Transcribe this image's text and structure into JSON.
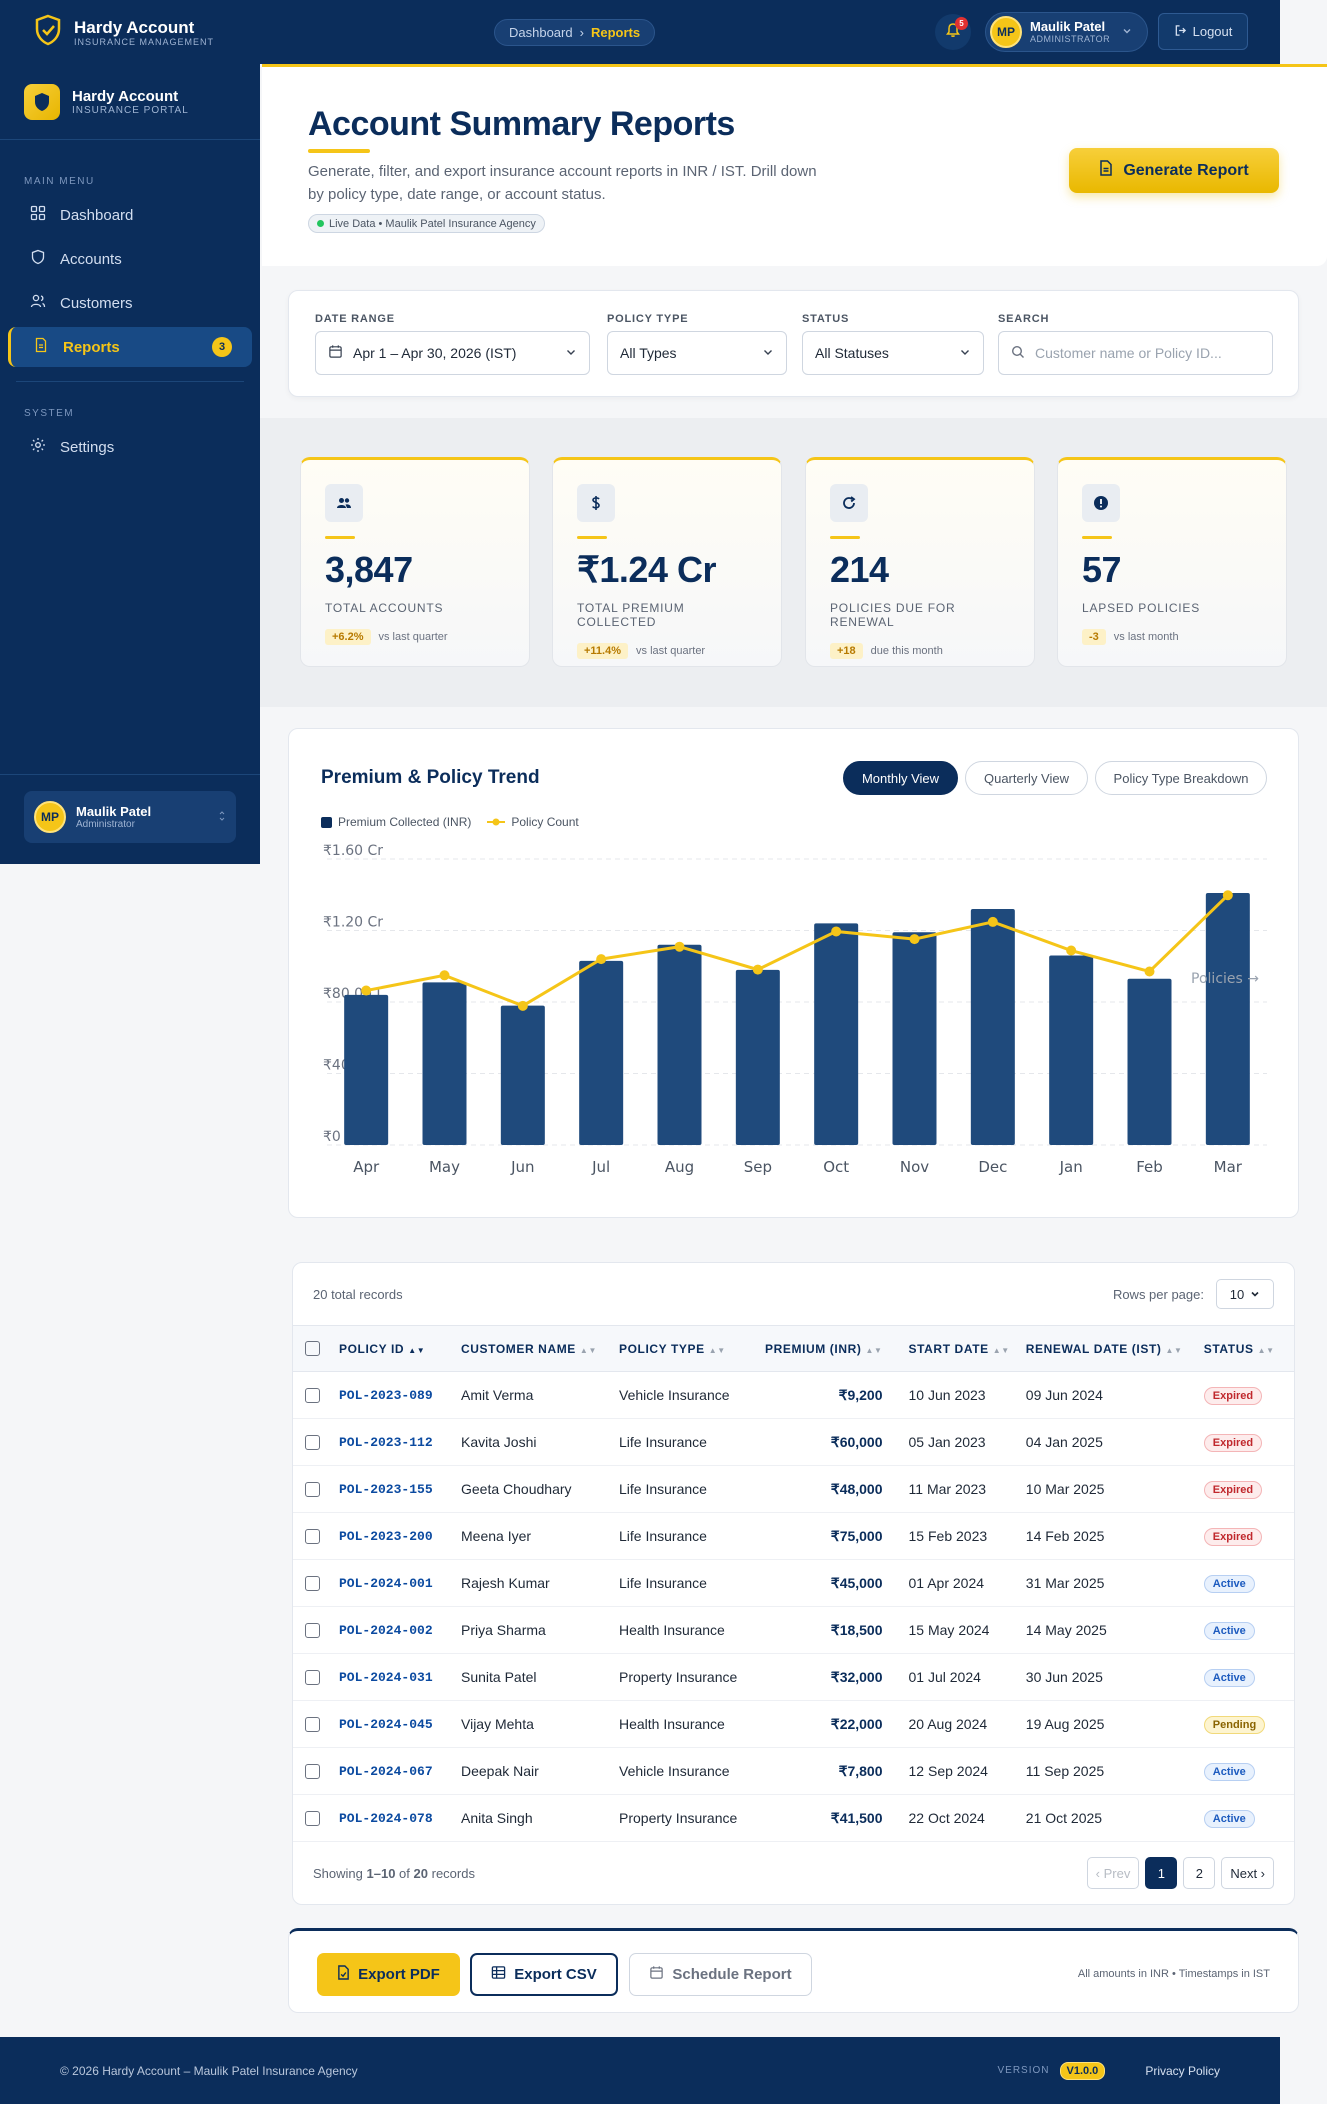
{
  "topbar": {
    "brand_name": "Hardy Account",
    "brand_sub": "INSURANCE MANAGEMENT",
    "breadcrumb": [
      "Dashboard",
      "Reports"
    ],
    "notif_count": "5",
    "user_initials": "MP",
    "user_name": "Maulik Patel",
    "user_role": "ADMINISTRATOR",
    "logout_label": "Logout"
  },
  "sidebar": {
    "title": "Hardy Account",
    "subtitle": "INSURANCE PORTAL",
    "main_section": "MAIN MENU",
    "items": [
      {
        "label": "Dashboard",
        "icon": "grid-icon"
      },
      {
        "label": "Accounts",
        "icon": "shield-icon"
      },
      {
        "label": "Customers",
        "icon": "users-icon"
      },
      {
        "label": "Reports",
        "icon": "document-icon",
        "badge": "3"
      }
    ],
    "system_section": "SYSTEM",
    "settings_label": "Settings",
    "footer_initials": "MP",
    "footer_name": "Maulik Patel",
    "footer_role": "Administrator"
  },
  "hero": {
    "title": "Account Summary Reports",
    "description": "Generate, filter, and export insurance account reports in INR / IST. Drill down by policy type, date range, or account status.",
    "live_label": "Live Data • Maulik Patel Insurance Agency",
    "generate_label": "Generate Report"
  },
  "filters": {
    "date_label": "DATE RANGE",
    "date_value": "Apr 1 – Apr 30, 2026 (IST)",
    "type_label": "POLICY TYPE",
    "type_value": "All Types",
    "status_label": "STATUS",
    "status_value": "All Statuses",
    "search_label": "SEARCH",
    "search_placeholder": "Customer name or Policy ID..."
  },
  "stats": [
    {
      "value": "3,847",
      "label": "TOTAL ACCOUNTS",
      "delta": "+6.2%",
      "note": "vs last quarter",
      "icon": "users-icon"
    },
    {
      "value": "₹1.24 Cr",
      "label": "TOTAL PREMIUM COLLECTED",
      "delta": "+11.4%",
      "note": "vs last quarter",
      "icon": "dollar-icon"
    },
    {
      "value": "214",
      "label": "POLICIES DUE FOR RENEWAL",
      "delta": "+18",
      "note": "due this month",
      "icon": "refresh-icon"
    },
    {
      "value": "57",
      "label": "LAPSED POLICIES",
      "delta": "-3",
      "note": "vs last month",
      "icon": "alert-icon"
    }
  ],
  "chart": {
    "title": "Premium & Policy Trend",
    "views": [
      "Monthly View",
      "Quarterly View",
      "Policy Type Breakdown"
    ],
    "legend_premium": "Premium Collected (INR)",
    "legend_count": "Policy Count",
    "policies_label": "Policies →",
    "colors": {
      "bar": "#1f4a7c",
      "line": "#f5c518"
    }
  },
  "chart_data": {
    "type": "bar",
    "categories": [
      "Apr",
      "May",
      "Jun",
      "Jul",
      "Aug",
      "Sep",
      "Oct",
      "Nov",
      "Dec",
      "Jan",
      "Feb",
      "Mar"
    ],
    "y_tick_labels": [
      "₹0",
      "₹40.00 L",
      "₹80.00 L",
      "₹1.20 Cr",
      "₹1.60 Cr"
    ],
    "ylim": [
      0,
      160
    ],
    "y_unit": "Lakh INR",
    "series": [
      {
        "name": "Premium Collected (INR)",
        "type": "bar",
        "values": [
          84,
          91,
          78,
          103,
          112,
          98,
          124,
          119,
          132,
          106,
          93,
          141
        ]
      },
      {
        "name": "Policy Count",
        "type": "line",
        "values": [
          162,
          178,
          146,
          195,
          208,
          184,
          224,
          216,
          234,
          204,
          182,
          262
        ]
      }
    ],
    "y2lim": [
      0,
      300
    ],
    "grid": true
  },
  "table": {
    "total_label": "20 total records",
    "rpp_label": "Rows per page:",
    "rpp_value": "10",
    "headers": [
      "POLICY ID",
      "CUSTOMER NAME",
      "POLICY TYPE",
      "PREMIUM (INR)",
      "START DATE",
      "RENEWAL DATE (IST)",
      "STATUS"
    ],
    "rows": [
      {
        "id": "POL-2023-089",
        "name": "Amit Verma",
        "type": "Vehicle Insurance",
        "premium": "₹9,200",
        "start": "10 Jun 2023",
        "renewal": "09 Jun 2024",
        "status": "Expired"
      },
      {
        "id": "POL-2023-112",
        "name": "Kavita Joshi",
        "type": "Life Insurance",
        "premium": "₹60,000",
        "start": "05 Jan 2023",
        "renewal": "04 Jan 2025",
        "status": "Expired"
      },
      {
        "id": "POL-2023-155",
        "name": "Geeta Choudhary",
        "type": "Life Insurance",
        "premium": "₹48,000",
        "start": "11 Mar 2023",
        "renewal": "10 Mar 2025",
        "status": "Expired"
      },
      {
        "id": "POL-2023-200",
        "name": "Meena Iyer",
        "type": "Life Insurance",
        "premium": "₹75,000",
        "start": "15 Feb 2023",
        "renewal": "14 Feb 2025",
        "status": "Expired"
      },
      {
        "id": "POL-2024-001",
        "name": "Rajesh Kumar",
        "type": "Life Insurance",
        "premium": "₹45,000",
        "start": "01 Apr 2024",
        "renewal": "31 Mar 2025",
        "status": "Active"
      },
      {
        "id": "POL-2024-002",
        "name": "Priya Sharma",
        "type": "Health Insurance",
        "premium": "₹18,500",
        "start": "15 May 2024",
        "renewal": "14 May 2025",
        "status": "Active"
      },
      {
        "id": "POL-2024-031",
        "name": "Sunita Patel",
        "type": "Property Insurance",
        "premium": "₹32,000",
        "start": "01 Jul 2024",
        "renewal": "30 Jun 2025",
        "status": "Active"
      },
      {
        "id": "POL-2024-045",
        "name": "Vijay Mehta",
        "type": "Health Insurance",
        "premium": "₹22,000",
        "start": "20 Aug 2024",
        "renewal": "19 Aug 2025",
        "status": "Pending"
      },
      {
        "id": "POL-2024-067",
        "name": "Deepak Nair",
        "type": "Vehicle Insurance",
        "premium": "₹7,800",
        "start": "12 Sep 2024",
        "renewal": "11 Sep 2025",
        "status": "Active"
      },
      {
        "id": "POL-2024-078",
        "name": "Anita Singh",
        "type": "Property Insurance",
        "premium": "₹41,500",
        "start": "22 Oct 2024",
        "renewal": "21 Oct 2025",
        "status": "Active"
      }
    ],
    "showing_prefix": "Showing",
    "showing_range": "1–10",
    "showing_of": "of",
    "showing_total": "20",
    "showing_suffix": "records",
    "prev_label": "‹ Prev",
    "pages": [
      "1",
      "2"
    ],
    "next_label": "Next ›"
  },
  "export": {
    "pdf_label": "Export PDF",
    "csv_label": "Export CSV",
    "schedule_label": "Schedule Report",
    "note": "All amounts in INR  •  Timestamps in IST"
  },
  "footer": {
    "copyright": "© 2026 Hardy Account – Maulik Patel Insurance Agency",
    "version_label": "VERSION",
    "version": "V1.0.0",
    "privacy": "Privacy Policy"
  }
}
